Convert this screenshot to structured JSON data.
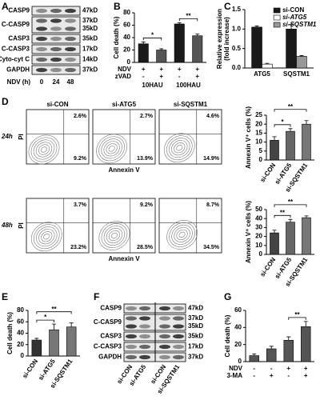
{
  "panel_labels": [
    "A",
    "B",
    "C",
    "D",
    "E",
    "F",
    "G"
  ],
  "blot_a": {
    "bands": [
      {
        "name": "CASP9",
        "sizes": [
          "47kD"
        ]
      },
      {
        "name": "C-CASP9",
        "sizes": [
          "37kD",
          "35kD"
        ]
      },
      {
        "name": "CASP3",
        "sizes": [
          "35kD"
        ]
      },
      {
        "name": "C-CASP3",
        "sizes": [
          "17kD"
        ]
      },
      {
        "name": "Cyto-cyt C",
        "sizes": [
          "14kD"
        ]
      },
      {
        "name": "GAPDH",
        "sizes": [
          "37kD"
        ]
      }
    ],
    "lane_title": "NDV (h)",
    "lanes": [
      "0",
      "24",
      "48"
    ]
  },
  "flow": {
    "y_label": "PI",
    "x_label": "Annexin V",
    "columns": [
      "si-CON",
      "si-ATG5",
      "si-SQSTM1"
    ],
    "rows": [
      {
        "label": "24h",
        "upper": [
          "2.6%",
          "2.7%",
          "4.6%"
        ],
        "lower": [
          "9.2%",
          "13.9%",
          "14.9%"
        ]
      },
      {
        "label": "48h",
        "upper": [
          "3.7%",
          "9.2%",
          "8.7%"
        ],
        "lower": [
          "23.2%",
          "28.5%",
          "34.5%"
        ]
      }
    ]
  },
  "blot_f": {
    "bands": [
      {
        "name": "CASP9",
        "sizes": [
          "47kD"
        ]
      },
      {
        "name": "C-CASP9",
        "sizes": [
          "37kD",
          "35kD"
        ]
      },
      {
        "name": "CASP3",
        "sizes": [
          "35kD"
        ]
      },
      {
        "name": "C-CASP3",
        "sizes": [
          "17kD"
        ]
      },
      {
        "name": "GAPDH",
        "sizes": [
          "37kD"
        ]
      }
    ],
    "lanes": [
      "si-CON",
      "si-ATG5",
      "si-CON",
      "si-SQSTM1"
    ]
  },
  "chart_data": [
    {
      "type": "bar",
      "ylabel": "Cell death (%)",
      "ylim": [
        0,
        80
      ],
      "yticks": [
        0,
        20,
        40,
        60,
        80
      ],
      "values": [
        30,
        20,
        62,
        43
      ],
      "errors": [
        3,
        2,
        2,
        3
      ],
      "colors": [
        "#1a1a1a",
        "#555555",
        "#1a1a1a",
        "#555555"
      ],
      "rows": [
        {
          "label": "NDV",
          "values": [
            "+",
            "+",
            "+",
            "+"
          ]
        },
        {
          "label": "zVAD",
          "values": [
            "-",
            "+",
            "-",
            "+"
          ]
        }
      ],
      "groups": [
        "10HAU",
        "100HAU"
      ],
      "annotations": [
        "*",
        "**"
      ]
    },
    {
      "type": "bar",
      "ylabel": [
        "Relative expression",
        "(fold increase)"
      ],
      "ylim": [
        0,
        1.5
      ],
      "yticks": [
        {
          "value": 0,
          "label": "0.0"
        },
        {
          "value": 0.5,
          "label": "0.5"
        },
        {
          "value": 1,
          "label": "1.0"
        },
        {
          "value": 1.5,
          "label": "1.5"
        }
      ],
      "categories": [
        "ATG5",
        "SQSTM1"
      ],
      "series": [
        {
          "name": "si-CON",
          "color": "#1a1a1a",
          "values": [
            1.05,
            1.0
          ],
          "errors": [
            0.03,
            0.12
          ]
        },
        {
          "name": "si-ATG5",
          "color": "#ffffff",
          "values": [
            0.1,
            null
          ],
          "errors": [
            0.02,
            null
          ]
        },
        {
          "name": "si-SQSTM1",
          "color": "#999999",
          "values": [
            null,
            0.3
          ],
          "errors": [
            null,
            0.02
          ]
        }
      ]
    },
    {
      "type": "bar",
      "ylabel": "Annexin V⁺ cells (%)",
      "ylim": [
        0,
        25
      ],
      "yticks": [
        0,
        5,
        10,
        15,
        20,
        25
      ],
      "values": [
        11,
        16,
        20
      ],
      "errors": [
        2,
        1.5,
        2
      ],
      "colors": [
        "#444444",
        "#666666",
        "#777777"
      ],
      "categories": [
        "si-CON",
        "si-ATG5",
        "si-SQSTM1"
      ],
      "annotations": [
        "*",
        "**"
      ]
    },
    {
      "type": "bar",
      "ylabel": "Annexin V⁺ cells (%)",
      "ylim": [
        0,
        50
      ],
      "yticks": [
        0,
        10,
        20,
        30,
        40,
        50
      ],
      "values": [
        24,
        36,
        41
      ],
      "errors": [
        3,
        3,
        2
      ],
      "colors": [
        "#444444",
        "#666666",
        "#777777"
      ],
      "categories": [
        "si-CON",
        "si-ATG5",
        "si-SQSTM1"
      ],
      "annotations": [
        "**",
        "**"
      ]
    },
    {
      "type": "bar",
      "ylabel": "Cell death (%)",
      "ylim": [
        0,
        80
      ],
      "yticks": [
        0,
        20,
        40,
        60,
        80
      ],
      "values": [
        28,
        46,
        51
      ],
      "errors": [
        3,
        10,
        7
      ],
      "colors": [
        "#333333",
        "#777777",
        "#777777"
      ],
      "categories": [
        "si-CON",
        "si-ATG5",
        "si-SQSTM1"
      ],
      "annotations": [
        "*",
        "**"
      ]
    },
    {
      "type": "bar",
      "ylabel": "Cell death (%)",
      "ylim": [
        0,
        60
      ],
      "yticks": [
        0,
        20,
        40,
        60
      ],
      "values": [
        7,
        15,
        25,
        41
      ],
      "errors": [
        2,
        3,
        4,
        6
      ],
      "colors": [
        "#555555",
        "#555555",
        "#555555",
        "#555555"
      ],
      "rows": [
        {
          "label": "NDV",
          "values": [
            "-",
            "-",
            "+",
            "+"
          ]
        },
        {
          "label": "3-MA",
          "values": [
            "-",
            "+",
            "-",
            "+"
          ]
        }
      ],
      "annotations": [
        "**"
      ]
    }
  ]
}
